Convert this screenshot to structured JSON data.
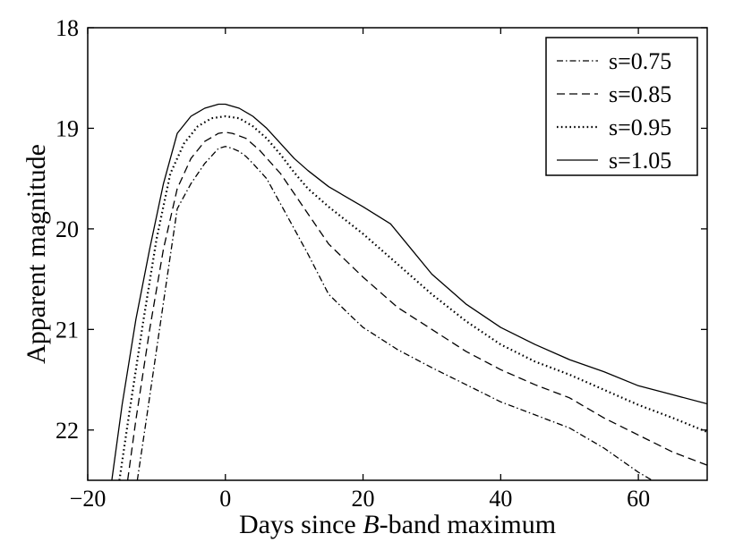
{
  "chart_data": {
    "type": "line",
    "title": "",
    "xlabel_pre": "Days since ",
    "xlabel_ital": "B",
    "xlabel_post": "-band maximum",
    "ylabel": "Apparent magnitude",
    "xlim": [
      -20,
      70
    ],
    "ylim": [
      18,
      22.5
    ],
    "y_inverted": true,
    "xticks": [
      -20,
      0,
      20,
      40,
      60
    ],
    "xtick_labels": [
      "−20",
      "0",
      "20",
      "40",
      "60"
    ],
    "yticks": [
      18,
      19,
      20,
      21,
      22
    ],
    "ytick_labels": [
      "18",
      "19",
      "20",
      "21",
      "22"
    ],
    "grid": false,
    "legend_position": "top-right",
    "series": [
      {
        "name": "s=0.75",
        "style": "dashdot",
        "x": [
          -12.8,
          -11.5,
          -10,
          -8.5,
          -7,
          -5,
          -3,
          -1,
          0,
          1,
          2,
          3,
          4,
          6,
          8,
          10,
          12,
          15,
          18,
          20,
          25,
          30,
          35,
          40,
          45,
          50,
          55,
          60,
          62
        ],
        "y": [
          22.5,
          21.9,
          21.2,
          20.5,
          19.8,
          19.55,
          19.35,
          19.2,
          19.18,
          19.2,
          19.23,
          19.28,
          19.35,
          19.5,
          19.75,
          20.0,
          20.25,
          20.65,
          20.85,
          20.98,
          21.2,
          21.38,
          21.55,
          21.72,
          21.85,
          21.98,
          22.18,
          22.42,
          22.5
        ]
      },
      {
        "name": "s=0.85",
        "style": "dashed",
        "x": [
          -14.2,
          -13,
          -11,
          -9,
          -7,
          -5,
          -3,
          -1,
          0,
          1,
          3,
          5,
          8,
          10,
          12,
          15,
          20,
          25,
          30,
          35,
          40,
          45,
          50,
          55,
          60,
          65,
          70
        ],
        "y": [
          22.5,
          21.9,
          21.0,
          20.2,
          19.6,
          19.3,
          19.13,
          19.05,
          19.04,
          19.05,
          19.1,
          19.22,
          19.45,
          19.65,
          19.85,
          20.15,
          20.48,
          20.78,
          21.0,
          21.22,
          21.4,
          21.55,
          21.68,
          21.88,
          22.05,
          22.22,
          22.35
        ]
      },
      {
        "name": "s=0.95",
        "style": "dotted",
        "x": [
          -15.4,
          -14,
          -12,
          -10,
          -8,
          -6,
          -4,
          -2,
          0,
          2,
          4,
          6,
          8,
          10,
          12,
          15,
          20,
          25,
          30,
          35,
          40,
          45,
          50,
          55,
          60,
          65,
          70
        ],
        "y": [
          22.5,
          21.85,
          20.95,
          20.1,
          19.45,
          19.15,
          18.98,
          18.9,
          18.88,
          18.9,
          18.98,
          19.1,
          19.26,
          19.44,
          19.6,
          19.78,
          20.05,
          20.35,
          20.65,
          20.92,
          21.15,
          21.32,
          21.45,
          21.6,
          21.75,
          21.88,
          22.02
        ]
      },
      {
        "name": "s=1.05",
        "style": "solid",
        "x": [
          -16.5,
          -15,
          -13,
          -11,
          -9,
          -7,
          -5,
          -3,
          -1,
          0,
          2,
          4,
          6,
          8,
          10,
          12,
          15,
          20,
          24,
          27,
          30,
          35,
          40,
          45,
          50,
          55,
          60,
          65,
          70
        ],
        "y": [
          22.5,
          21.75,
          20.9,
          20.2,
          19.55,
          19.05,
          18.88,
          18.8,
          18.76,
          18.76,
          18.8,
          18.88,
          19.0,
          19.15,
          19.3,
          19.42,
          19.58,
          19.78,
          19.95,
          20.2,
          20.45,
          20.75,
          20.98,
          21.15,
          21.3,
          21.42,
          21.56,
          21.65,
          21.74
        ]
      }
    ]
  }
}
